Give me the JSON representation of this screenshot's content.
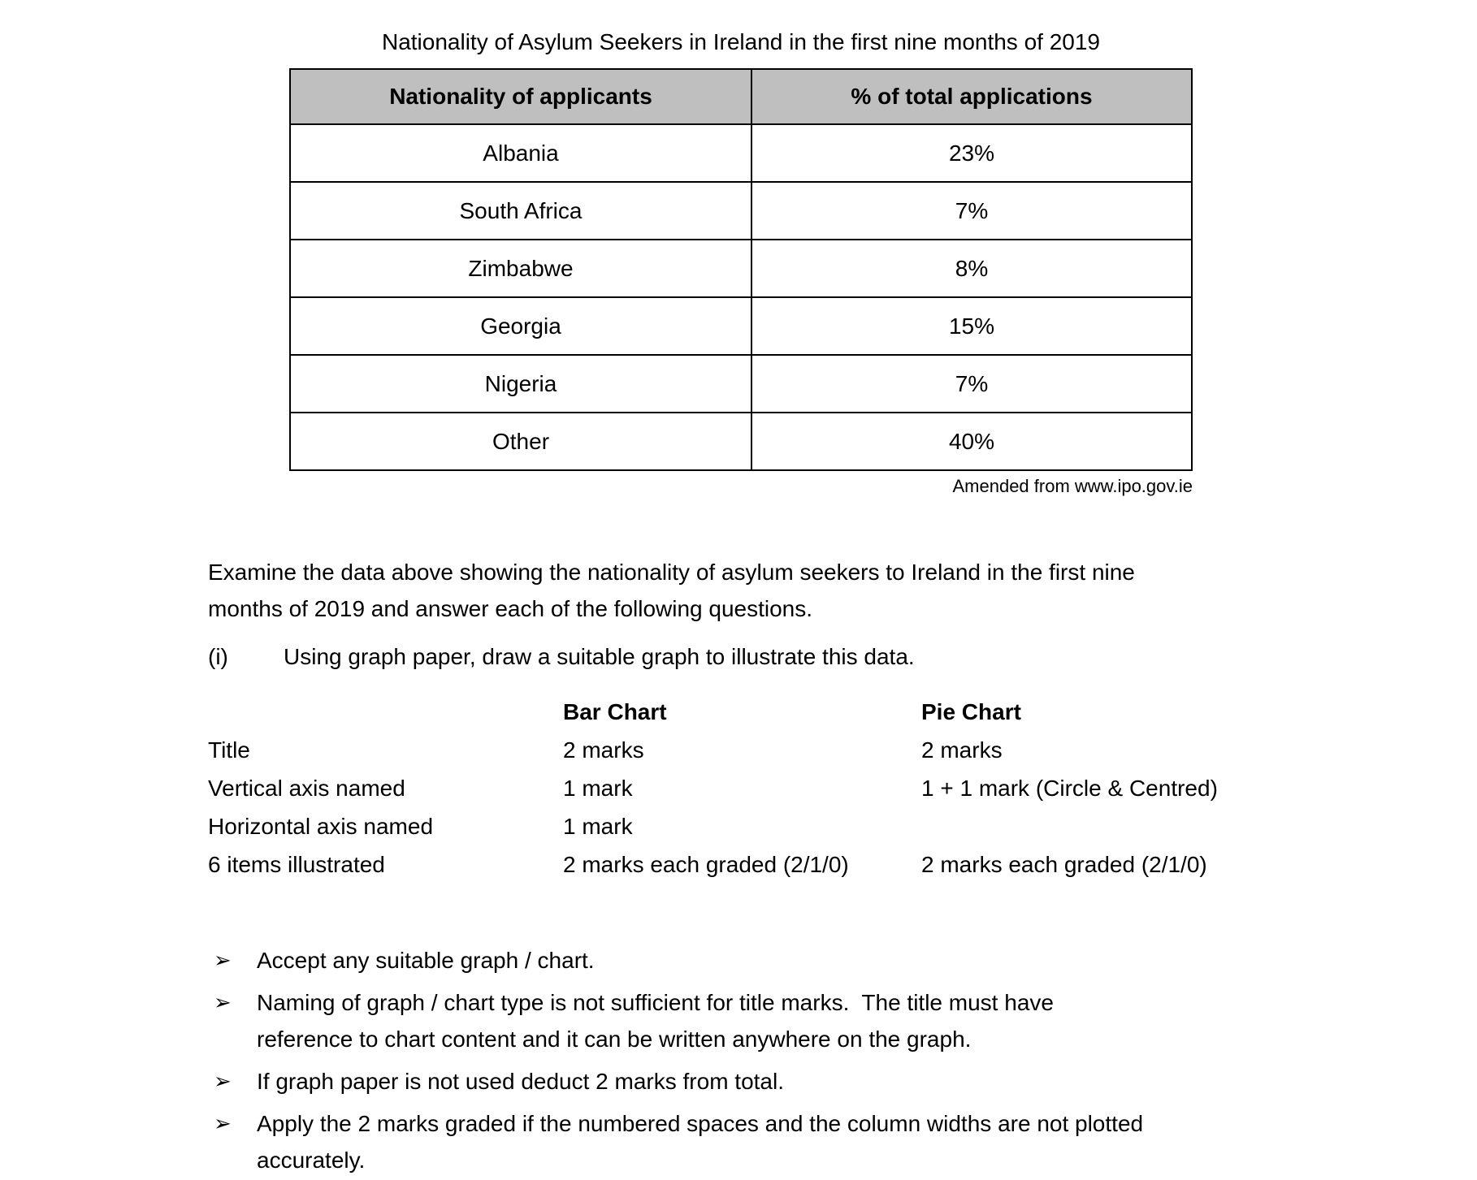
{
  "page": {
    "title": "Nationality of Asylum Seekers in Ireland in the first nine months of 2019",
    "source_note": "Amended from www.ipo.gov.ie"
  },
  "table": {
    "headers": [
      "Nationality of applicants",
      "% of total applications"
    ],
    "rows": [
      {
        "nationality": "Albania",
        "pct": "23%"
      },
      {
        "nationality": "South Africa",
        "pct": "7%"
      },
      {
        "nationality": "Zimbabwe",
        "pct": "8%"
      },
      {
        "nationality": "Georgia",
        "pct": "15%"
      },
      {
        "nationality": "Nigeria",
        "pct": "7%"
      },
      {
        "nationality": "Other",
        "pct": "40%"
      }
    ]
  },
  "instructions": {
    "examine_lines": [
      "Examine the data above showing the nationality of asylum seekers to Ireland in the first nine",
      "months of 2019 and answer each of the following questions."
    ],
    "question_label": "(i)",
    "question_text": "Using graph paper, draw a suitable graph to illustrate this data."
  },
  "marking_grid": {
    "col_headers": [
      "Bar Chart",
      "Pie Chart"
    ],
    "rows": [
      {
        "label": "Title",
        "bar": "2 marks",
        "pie": "2 marks"
      },
      {
        "label": "Vertical axis named",
        "bar": "1 mark",
        "pie": "1 + 1 mark (Circle & Centred)"
      },
      {
        "label": "Horizontal axis named",
        "bar": "1 mark",
        "pie": ""
      },
      {
        "label": "6 items illustrated",
        "bar": "2 marks each graded (2/1/0)",
        "pie": "2 marks each graded (2/1/0)"
      }
    ]
  },
  "notes": {
    "bullet_marker": "➢",
    "items": [
      [
        "Accept any suitable graph / chart."
      ],
      [
        "Naming of graph / chart type is not sufficient for title marks.  The title must have",
        "reference to chart content and it can be written anywhere on the graph."
      ],
      [
        "If graph paper is not used deduct 2 marks from total."
      ],
      [
        "Apply the 2 marks graded if the numbered spaces and the column widths are not plotted",
        "accurately."
      ]
    ]
  },
  "colors": {
    "header_bg": "#bfbfbf",
    "text": "#000000",
    "page_bg": "#ffffff"
  }
}
